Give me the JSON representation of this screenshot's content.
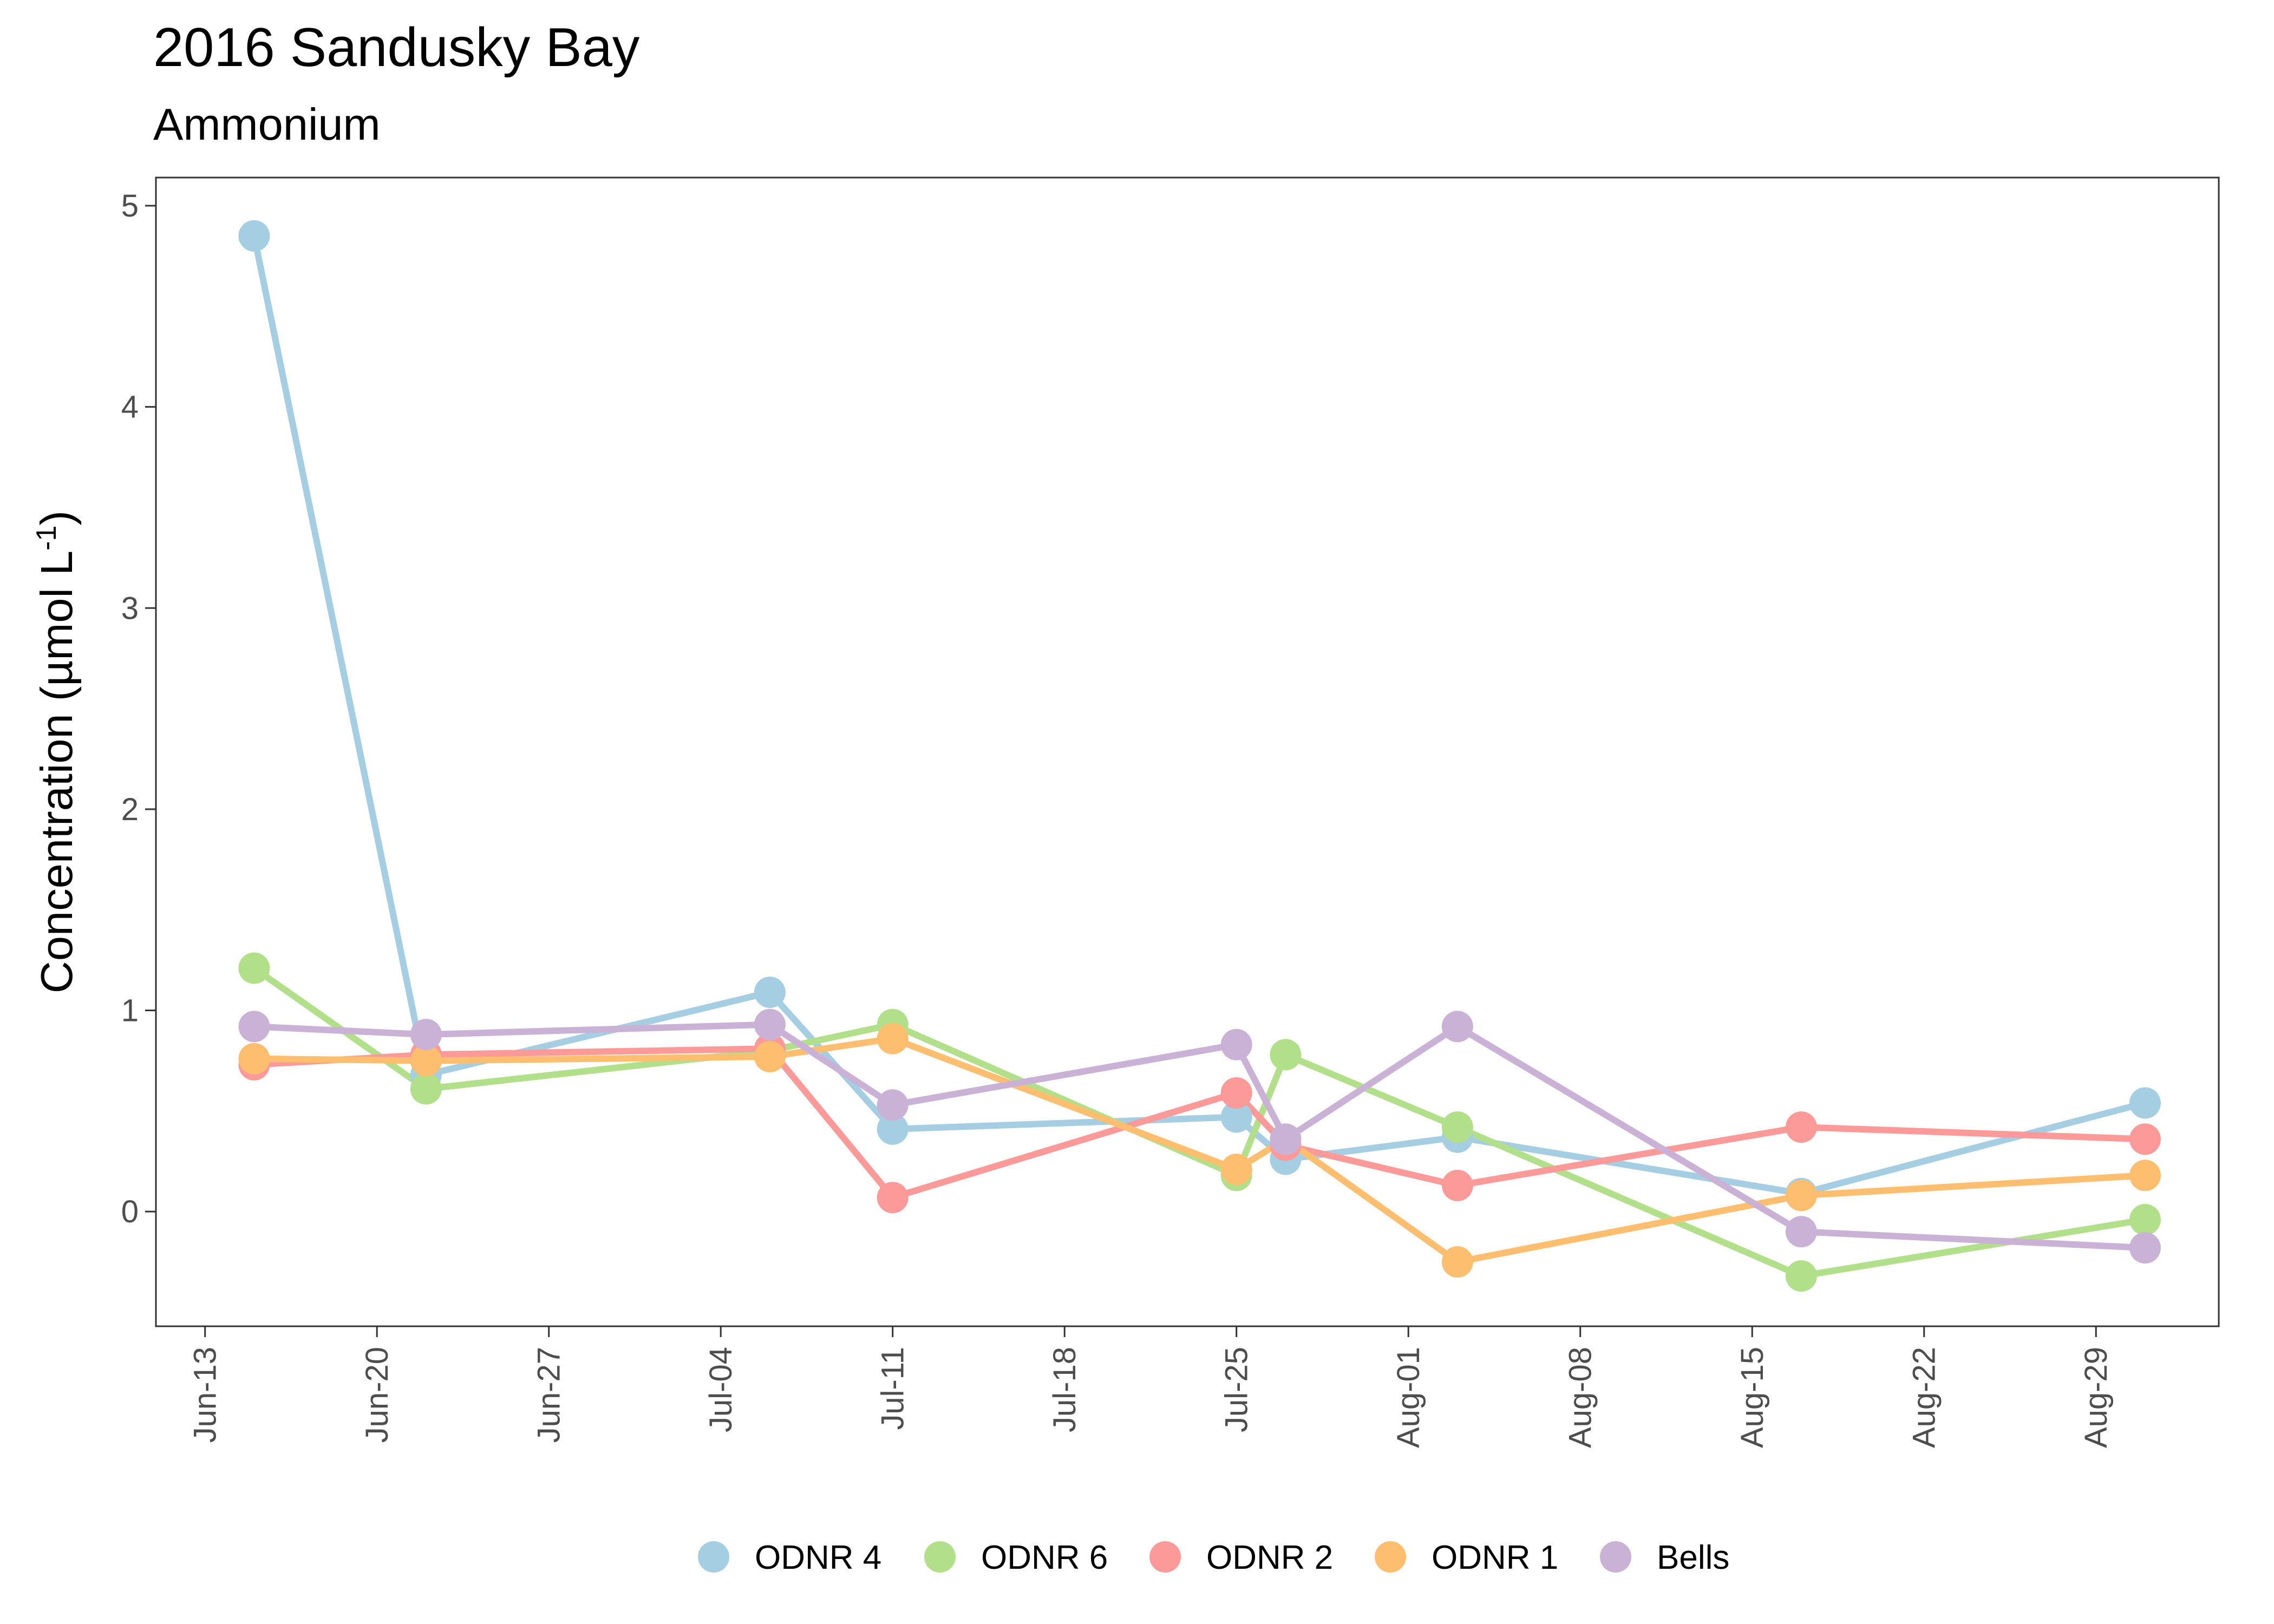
{
  "chart_data": {
    "type": "line",
    "title": "2016 Sandusky Bay",
    "subtitle": "Ammonium",
    "xlabel": "",
    "ylabel": "Concentration (µmol L",
    "ylabel_superscript": "-1",
    "ylabel_suffix": ")",
    "x_is_date": true,
    "year": 2016,
    "xlim": [
      "2016-06-11",
      "2016-09-03"
    ],
    "ylim": [
      -0.57,
      5.14
    ],
    "x_ticks": [
      {
        "date": "2016-06-13",
        "label": "Jun-13"
      },
      {
        "date": "2016-06-20",
        "label": "Jun-20"
      },
      {
        "date": "2016-06-27",
        "label": "Jun-27"
      },
      {
        "date": "2016-07-04",
        "label": "Jul-04"
      },
      {
        "date": "2016-07-11",
        "label": "Jul-11"
      },
      {
        "date": "2016-07-18",
        "label": "Jul-18"
      },
      {
        "date": "2016-07-25",
        "label": "Jul-25"
      },
      {
        "date": "2016-08-01",
        "label": "Aug-01"
      },
      {
        "date": "2016-08-08",
        "label": "Aug-08"
      },
      {
        "date": "2016-08-15",
        "label": "Aug-15"
      },
      {
        "date": "2016-08-22",
        "label": "Aug-22"
      },
      {
        "date": "2016-08-29",
        "label": "Aug-29"
      }
    ],
    "y_ticks": [
      {
        "value": 0,
        "label": "0"
      },
      {
        "value": 1,
        "label": "1"
      },
      {
        "value": 2,
        "label": "2"
      },
      {
        "value": 3,
        "label": "3"
      },
      {
        "value": 4,
        "label": "4"
      },
      {
        "value": 5,
        "label": "5"
      }
    ],
    "grid": false,
    "legend_position": "bottom",
    "series": [
      {
        "name": "ODNR 4",
        "color": "#a6cee3",
        "points": [
          {
            "x": "2016-06-15",
            "y": 4.85
          },
          {
            "x": "2016-06-22",
            "y": 0.68
          },
          {
            "x": "2016-07-06",
            "y": 1.09
          },
          {
            "x": "2016-07-11",
            "y": 0.41
          },
          {
            "x": "2016-07-25",
            "y": 0.47
          },
          {
            "x": "2016-07-27",
            "y": 0.26
          },
          {
            "x": "2016-08-03",
            "y": 0.37
          },
          {
            "x": "2016-08-17",
            "y": 0.09
          },
          {
            "x": "2016-08-31",
            "y": 0.54
          }
        ]
      },
      {
        "name": "ODNR 6",
        "color": "#b2df8a",
        "points": [
          {
            "x": "2016-06-15",
            "y": 1.21
          },
          {
            "x": "2016-06-22",
            "y": 0.61
          },
          {
            "x": "2016-07-06",
            "y": 0.8
          },
          {
            "x": "2016-07-11",
            "y": 0.93
          },
          {
            "x": "2016-07-25",
            "y": 0.18
          },
          {
            "x": "2016-07-27",
            "y": 0.78
          },
          {
            "x": "2016-08-03",
            "y": 0.42
          },
          {
            "x": "2016-08-17",
            "y": -0.32
          },
          {
            "x": "2016-08-31",
            "y": -0.04
          }
        ]
      },
      {
        "name": "ODNR 2",
        "color": "#fb9a99",
        "points": [
          {
            "x": "2016-06-15",
            "y": 0.73
          },
          {
            "x": "2016-06-22",
            "y": 0.78
          },
          {
            "x": "2016-07-06",
            "y": 0.81
          },
          {
            "x": "2016-07-11",
            "y": 0.07
          },
          {
            "x": "2016-07-25",
            "y": 0.59
          },
          {
            "x": "2016-07-27",
            "y": 0.33
          },
          {
            "x": "2016-08-03",
            "y": 0.13
          },
          {
            "x": "2016-08-17",
            "y": 0.42
          },
          {
            "x": "2016-08-31",
            "y": 0.36
          }
        ]
      },
      {
        "name": "ODNR 1",
        "color": "#fdbf6f",
        "points": [
          {
            "x": "2016-06-15",
            "y": 0.76
          },
          {
            "x": "2016-06-22",
            "y": 0.75
          },
          {
            "x": "2016-07-06",
            "y": 0.77
          },
          {
            "x": "2016-07-11",
            "y": 0.86
          },
          {
            "x": "2016-07-25",
            "y": 0.21
          },
          {
            "x": "2016-07-27",
            "y": 0.36
          },
          {
            "x": "2016-08-03",
            "y": -0.25
          },
          {
            "x": "2016-08-17",
            "y": 0.08
          },
          {
            "x": "2016-08-31",
            "y": 0.18
          }
        ]
      },
      {
        "name": "Bells",
        "color": "#cab2d6",
        "points": [
          {
            "x": "2016-06-15",
            "y": 0.92
          },
          {
            "x": "2016-06-22",
            "y": 0.88
          },
          {
            "x": "2016-07-06",
            "y": 0.93
          },
          {
            "x": "2016-07-11",
            "y": 0.53
          },
          {
            "x": "2016-07-25",
            "y": 0.83
          },
          {
            "x": "2016-07-27",
            "y": 0.36
          },
          {
            "x": "2016-08-03",
            "y": 0.92
          },
          {
            "x": "2016-08-17",
            "y": -0.1
          },
          {
            "x": "2016-08-31",
            "y": -0.18
          }
        ]
      }
    ]
  }
}
